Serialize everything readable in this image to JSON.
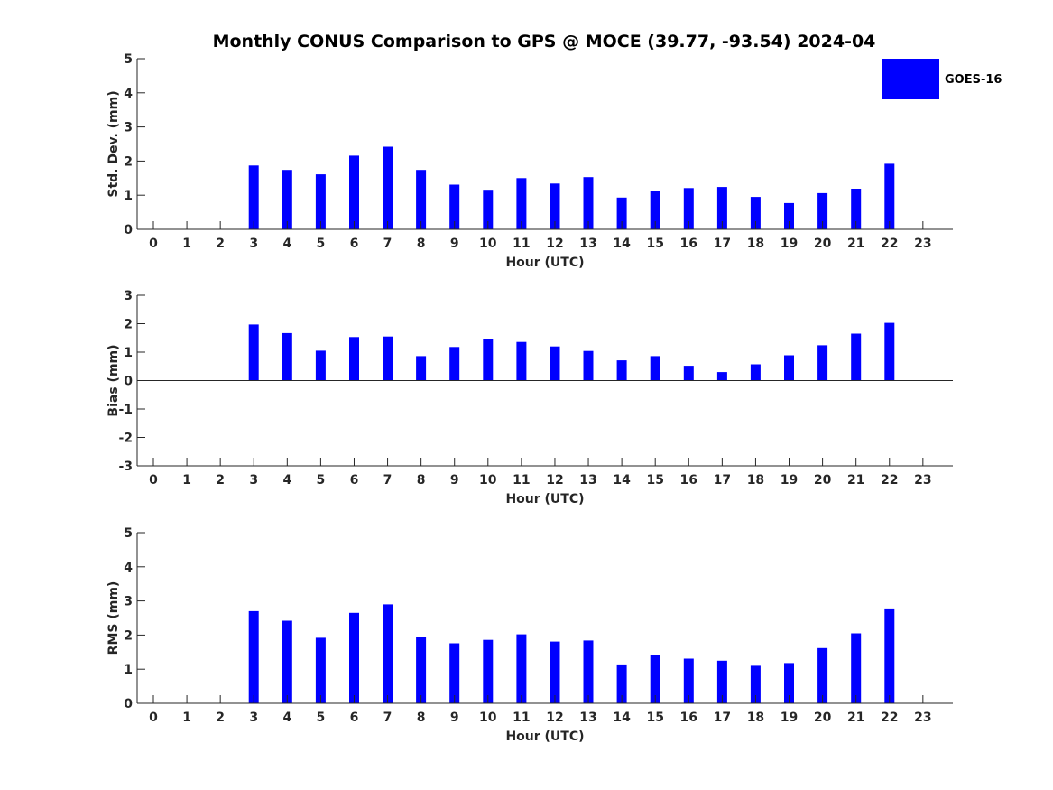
{
  "title": "Monthly CONUS Comparison to GPS @ MOCE (39.77, -93.54) 2024-04",
  "legend": {
    "label": "GOES-16",
    "color": "#0000ff"
  },
  "chart_data": [
    {
      "type": "bar",
      "xlabel": "Hour (UTC)",
      "ylabel": "Std. Dev. (mm)",
      "ylim": [
        0,
        5
      ],
      "yticks": [
        0,
        1,
        2,
        3,
        4,
        5
      ],
      "categories": [
        0,
        1,
        2,
        3,
        4,
        5,
        6,
        7,
        8,
        9,
        10,
        11,
        12,
        13,
        14,
        15,
        16,
        17,
        18,
        19,
        20,
        21,
        22,
        23
      ],
      "series": [
        {
          "name": "GOES-16",
          "color": "#0000ff",
          "values": [
            null,
            null,
            null,
            1.87,
            1.74,
            1.61,
            2.16,
            2.42,
            1.74,
            1.31,
            1.16,
            1.5,
            1.34,
            1.53,
            0.93,
            1.13,
            1.21,
            1.24,
            0.95,
            0.77,
            1.06,
            1.19,
            1.92,
            null
          ]
        }
      ]
    },
    {
      "type": "bar",
      "xlabel": "Hour (UTC)",
      "ylabel": "Bias (mm)",
      "ylim": [
        -3,
        3
      ],
      "yticks": [
        -3,
        -2,
        -1,
        0,
        1,
        2,
        3
      ],
      "categories": [
        0,
        1,
        2,
        3,
        4,
        5,
        6,
        7,
        8,
        9,
        10,
        11,
        12,
        13,
        14,
        15,
        16,
        17,
        18,
        19,
        20,
        21,
        22,
        23
      ],
      "series": [
        {
          "name": "GOES-16",
          "color": "#0000ff",
          "values": [
            null,
            null,
            null,
            1.97,
            1.67,
            1.05,
            1.53,
            1.55,
            0.86,
            1.18,
            1.46,
            1.36,
            1.2,
            1.04,
            0.71,
            0.86,
            0.52,
            0.3,
            0.57,
            0.89,
            1.24,
            1.65,
            2.03,
            null
          ]
        }
      ]
    },
    {
      "type": "bar",
      "xlabel": "Hour (UTC)",
      "ylabel": "RMS (mm)",
      "ylim": [
        0,
        5
      ],
      "yticks": [
        0,
        1,
        2,
        3,
        4,
        5
      ],
      "categories": [
        0,
        1,
        2,
        3,
        4,
        5,
        6,
        7,
        8,
        9,
        10,
        11,
        12,
        13,
        14,
        15,
        16,
        17,
        18,
        19,
        20,
        21,
        22,
        23
      ],
      "series": [
        {
          "name": "GOES-16",
          "color": "#0000ff",
          "values": [
            null,
            null,
            null,
            2.7,
            2.42,
            1.92,
            2.65,
            2.9,
            1.94,
            1.76,
            1.86,
            2.02,
            1.81,
            1.84,
            1.14,
            1.41,
            1.31,
            1.25,
            1.1,
            1.18,
            1.62,
            2.05,
            2.78,
            null
          ]
        }
      ]
    }
  ]
}
